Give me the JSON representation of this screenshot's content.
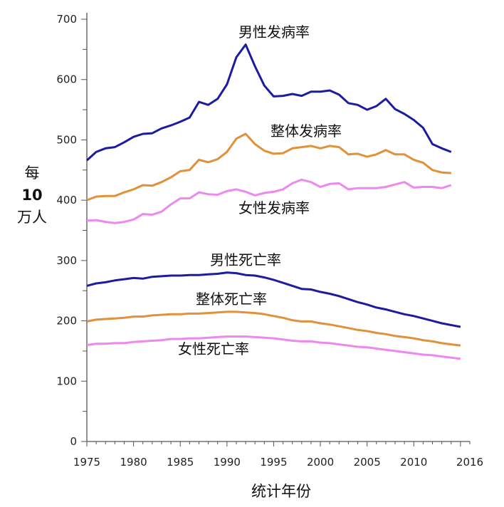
{
  "chart_data": {
    "type": "line",
    "xlabel": "统计年份",
    "ylabel": [
      "每",
      "10",
      "万人"
    ],
    "xlim": [
      1975,
      2016
    ],
    "ylim": [
      0,
      700
    ],
    "xticks": [
      1975,
      1980,
      1985,
      1990,
      1995,
      2000,
      2005,
      2010,
      2016
    ],
    "yticks": [
      0,
      100,
      200,
      300,
      400,
      500,
      600,
      700
    ],
    "grid": false,
    "series": [
      {
        "name": "男性发病率",
        "color": "#1c1ca0",
        "x_start": 1975,
        "values": [
          466,
          480,
          486,
          488,
          496,
          505,
          510,
          511,
          519,
          524,
          530,
          537,
          563,
          558,
          568,
          592,
          637,
          658,
          622,
          590,
          572,
          573,
          576,
          573,
          580,
          580,
          582,
          575,
          561,
          558,
          550,
          556,
          568,
          551,
          543,
          533,
          520,
          493,
          486,
          480
        ]
      },
      {
        "name": "整体发病率",
        "color": "#e0913a",
        "x_start": 1975,
        "values": [
          400,
          406,
          407,
          407,
          413,
          418,
          425,
          424,
          430,
          438,
          448,
          450,
          467,
          463,
          468,
          480,
          502,
          510,
          493,
          482,
          477,
          478,
          486,
          488,
          490,
          486,
          490,
          488,
          476,
          477,
          472,
          476,
          483,
          476,
          476,
          467,
          462,
          450,
          446,
          445
        ]
      },
      {
        "name": "女性发病率",
        "color": "#ee88ee",
        "x_start": 1975,
        "values": [
          366,
          367,
          364,
          362,
          364,
          368,
          377,
          376,
          381,
          393,
          403,
          403,
          413,
          410,
          409,
          415,
          418,
          414,
          408,
          412,
          414,
          418,
          428,
          434,
          430,
          422,
          427,
          428,
          418,
          420,
          420,
          420,
          422,
          426,
          430,
          421,
          422,
          422,
          420,
          425
        ]
      },
      {
        "name": "男性死亡率",
        "color": "#1c1ca0",
        "x_start": 1975,
        "values": [
          258,
          262,
          264,
          267,
          269,
          271,
          270,
          273,
          274,
          275,
          275,
          276,
          276,
          277,
          278,
          280,
          279,
          276,
          275,
          272,
          268,
          263,
          258,
          253,
          252,
          248,
          245,
          241,
          236,
          231,
          227,
          222,
          219,
          215,
          211,
          208,
          204,
          200,
          196,
          193,
          190
        ]
      },
      {
        "name": "整体死亡率",
        "color": "#e0913a",
        "x_start": 1975,
        "values": [
          199,
          202,
          203,
          204,
          205,
          207,
          207,
          209,
          210,
          211,
          211,
          212,
          212,
          213,
          214,
          215,
          215,
          214,
          213,
          211,
          208,
          205,
          201,
          199,
          199,
          196,
          194,
          191,
          188,
          185,
          183,
          180,
          178,
          175,
          173,
          171,
          168,
          166,
          163,
          161,
          159
        ]
      },
      {
        "name": "女性死亡率",
        "color": "#ee88ee",
        "x_start": 1975,
        "values": [
          160,
          162,
          162,
          163,
          163,
          165,
          166,
          167,
          168,
          170,
          170,
          171,
          171,
          172,
          173,
          174,
          174,
          174,
          173,
          172,
          171,
          169,
          167,
          166,
          166,
          164,
          163,
          161,
          159,
          157,
          156,
          154,
          152,
          150,
          148,
          146,
          144,
          143,
          141,
          139,
          137
        ]
      }
    ]
  }
}
